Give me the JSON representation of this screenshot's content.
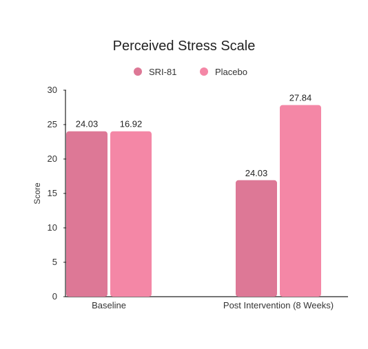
{
  "chart_data": {
    "type": "bar",
    "title": "Perceived Stress Scale",
    "xlabel": "",
    "ylabel": "Score",
    "categories": [
      "Baseline",
      "Post Intervention (8 Weeks)"
    ],
    "series": [
      {
        "name": "SRI-81",
        "values": [
          24.03,
          16.92
        ],
        "color": "#dd7896"
      },
      {
        "name": "Placebo",
        "values": [
          24.03,
          27.84
        ],
        "color": "#f487a6"
      }
    ],
    "ylim": [
      0,
      30
    ],
    "yticks": [
      0,
      5,
      10,
      15,
      20,
      25,
      30
    ],
    "grid": false,
    "legend_position": "top-center",
    "data_labels": [
      [
        "24.03",
        "16.92"
      ],
      [
        "24.03",
        "27.84"
      ]
    ]
  }
}
